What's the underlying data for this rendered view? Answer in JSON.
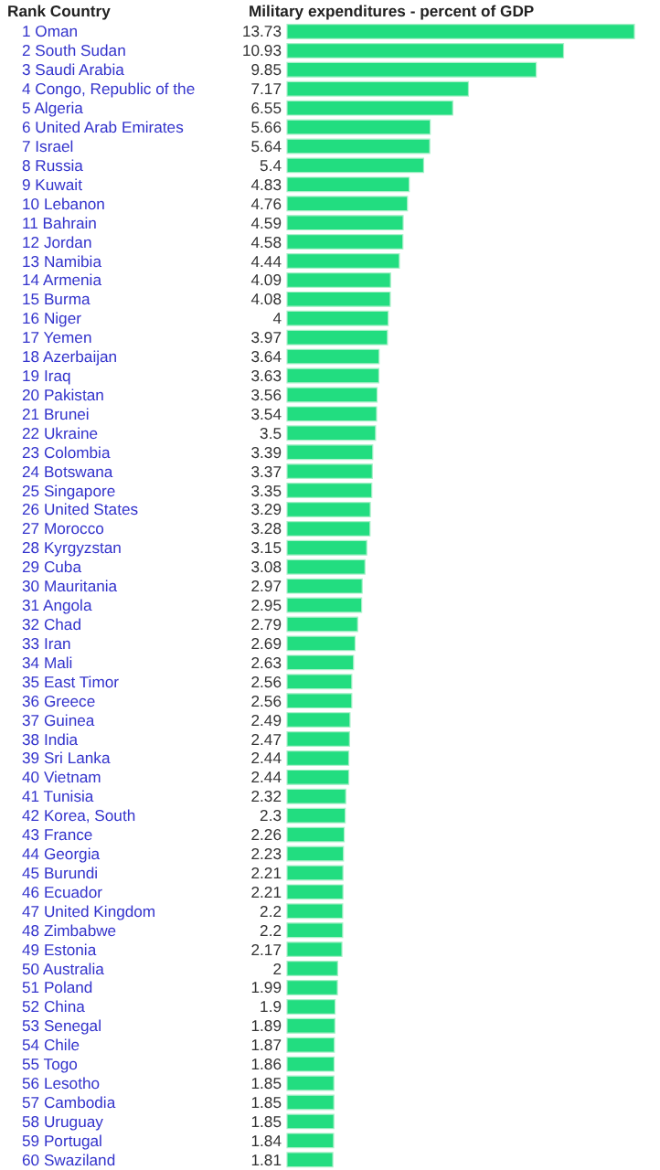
{
  "chart_data": {
    "type": "bar",
    "orientation": "horizontal",
    "title": "Military expenditures - percent of GDP",
    "ylabel": "Rank Country",
    "color": "#22dd80",
    "data_labels": true,
    "categories": [
      "1 Oman",
      "2 South Sudan",
      "3 Saudi Arabia",
      "4 Congo, Republic of the",
      "5 Algeria",
      "6 United Arab Emirates",
      "7 Israel",
      "8 Russia",
      "9 Kuwait",
      "10 Lebanon",
      "11 Bahrain",
      "12 Jordan",
      "13 Namibia",
      "14 Armenia",
      "15 Burma",
      "16 Niger",
      "17 Yemen",
      "18 Azerbaijan",
      "19 Iraq",
      "20 Pakistan",
      "21 Brunei",
      "22 Ukraine",
      "23 Colombia",
      "24 Botswana",
      "25 Singapore",
      "26 United States",
      "27 Morocco",
      "28 Kyrgyzstan",
      "29 Cuba",
      "30 Mauritania",
      "31 Angola",
      "32 Chad",
      "33 Iran",
      "34 Mali",
      "35 East Timor",
      "36 Greece",
      "37 Guinea",
      "38 India",
      "39 Sri Lanka",
      "40 Vietnam",
      "41 Tunisia",
      "42 Korea, South",
      "43 France",
      "44 Georgia",
      "45 Burundi",
      "46 Ecuador",
      "47 United Kingdom",
      "48 Zimbabwe",
      "49 Estonia",
      "50 Australia",
      "51 Poland",
      "52 China",
      "53 Senegal",
      "54 Chile",
      "55 Togo",
      "56 Lesotho",
      "57 Cambodia",
      "58 Uruguay",
      "59 Portugal",
      "60 Swaziland"
    ],
    "values": [
      13.73,
      10.93,
      9.85,
      7.17,
      6.55,
      5.66,
      5.64,
      5.4,
      4.83,
      4.76,
      4.59,
      4.58,
      4.44,
      4.09,
      4.08,
      4,
      3.97,
      3.64,
      3.63,
      3.56,
      3.54,
      3.5,
      3.39,
      3.37,
      3.35,
      3.29,
      3.28,
      3.15,
      3.08,
      2.97,
      2.95,
      2.79,
      2.69,
      2.63,
      2.56,
      2.56,
      2.49,
      2.47,
      2.44,
      2.44,
      2.32,
      2.3,
      2.26,
      2.23,
      2.21,
      2.21,
      2.2,
      2.2,
      2.17,
      2,
      1.99,
      1.9,
      1.89,
      1.87,
      1.86,
      1.85,
      1.85,
      1.85,
      1.84,
      1.81
    ]
  }
}
